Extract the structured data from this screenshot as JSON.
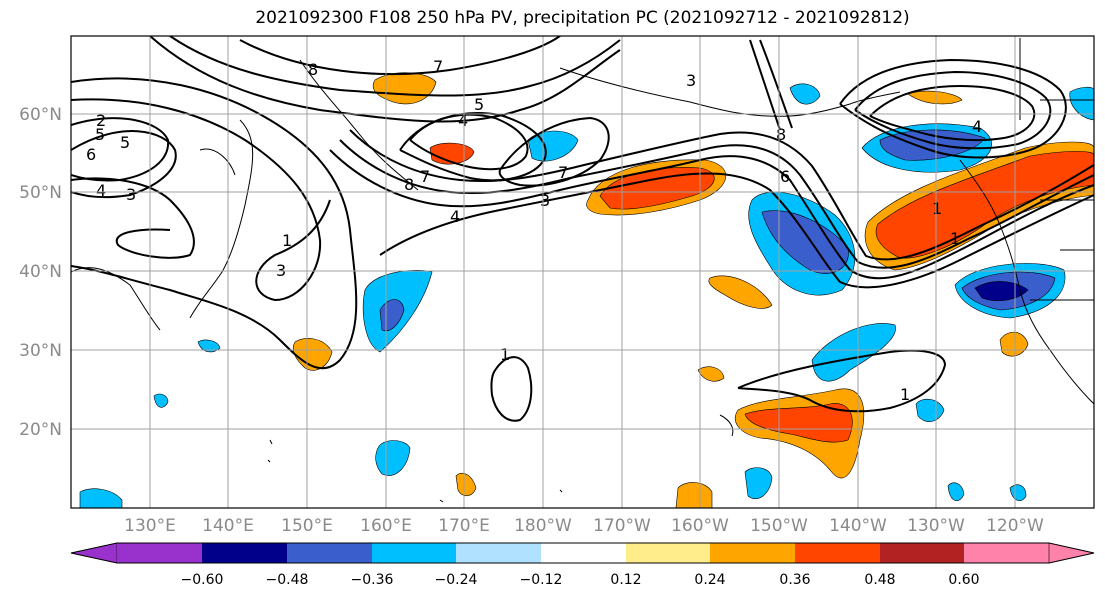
{
  "title": "2021092300 F108 250 hPa PV, precipitation PC (2021092712 - 2021092812)",
  "lat_labels": [
    "60°N",
    "50°N",
    "40°N",
    "30°N",
    "20°N"
  ],
  "lon_labels": [
    "130°E",
    "140°E",
    "150°E",
    "160°E",
    "170°E",
    "180°W",
    "170°W",
    "160°W",
    "150°W",
    "140°W",
    "130°W",
    "120°W"
  ],
  "colorbar": {
    "colors": [
      "#9932cc",
      "#00008b",
      "#3a5fcd",
      "#00bfff",
      "#b0e2ff",
      "#ffffff",
      "#ffec8b",
      "#ffa500",
      "#ff4500",
      "#b22222",
      "#ff82ab"
    ],
    "labels": [
      "−0.60",
      "−0.48",
      "−0.36",
      "−0.24",
      "−0.12",
      "0.12",
      "0.24",
      "0.36",
      "0.48",
      "0.60"
    ]
  },
  "contour_labels": [
    "8",
    "7",
    "2",
    "5",
    "6",
    "5",
    "4",
    "3",
    "1",
    "3",
    "7",
    "4",
    "5",
    "8",
    "7",
    "4",
    "3",
    "1",
    "3",
    "8",
    "6",
    "4",
    "1",
    "1",
    "1"
  ]
}
